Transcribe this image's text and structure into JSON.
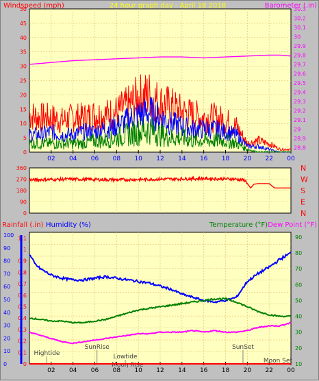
{
  "chart_data": [
    {
      "type": "line",
      "name": "wind-barometer",
      "title": "24 hour graph day - April 18 2018",
      "left_label": "Windspeed (mph)",
      "right_label": "Barometer (.in)",
      "x_ticks": [
        "02",
        "04",
        "06",
        "08",
        "10",
        "12",
        "14",
        "16",
        "18",
        "20",
        "22",
        "00"
      ],
      "y_left_ticks": [
        "0",
        "5",
        "10",
        "15",
        "20",
        "25",
        "30",
        "35",
        "40",
        "45",
        "50"
      ],
      "y_left_range": [
        0,
        50
      ],
      "y_right_ticks": [
        "28.8",
        "28.9",
        "29",
        "29.1",
        "29.2",
        "29.3",
        "29.4",
        "29.5",
        "29.6",
        "29.7",
        "29.8",
        "29.9",
        "30",
        "30.1",
        "30.2",
        "30.3"
      ],
      "y_right_range": [
        28.75,
        30.3
      ],
      "grid": true,
      "series": [
        {
          "id": "gust",
          "color": "#ff0000",
          "axis": "left",
          "x": [
            0,
            1,
            2,
            3,
            4,
            5,
            6,
            7,
            8,
            9,
            10,
            11,
            12,
            13,
            14,
            15,
            16,
            17,
            18,
            19,
            20,
            21,
            22,
            23,
            24
          ],
          "y": [
            13,
            12,
            12,
            11,
            12,
            12,
            13,
            13,
            14,
            16,
            19,
            20,
            17,
            16,
            14,
            13,
            12,
            12,
            11,
            9,
            3,
            4,
            3,
            1,
            1
          ]
        },
        {
          "id": "average",
          "color": "#0000ff",
          "axis": "left",
          "x": [
            0,
            1,
            2,
            3,
            4,
            5,
            6,
            7,
            8,
            9,
            10,
            11,
            12,
            13,
            14,
            15,
            16,
            17,
            18,
            19,
            20,
            21,
            22,
            23,
            24
          ],
          "y": [
            6,
            6,
            7,
            6,
            6,
            7,
            7,
            8,
            9,
            11,
            13,
            14,
            12,
            10,
            9,
            8,
            8,
            8,
            7,
            6,
            2,
            2,
            1,
            0,
            0
          ]
        },
        {
          "id": "wind",
          "color": "#008000",
          "axis": "left",
          "x": [
            0,
            1,
            2,
            3,
            4,
            5,
            6,
            7,
            8,
            9,
            10,
            11,
            12,
            13,
            14,
            15,
            16,
            17,
            18,
            19,
            20,
            21,
            22,
            23,
            24
          ],
          "y": [
            3,
            3,
            3,
            3,
            3,
            3,
            4,
            4,
            5,
            6,
            7,
            8,
            6,
            5,
            5,
            4,
            4,
            4,
            4,
            3,
            1,
            0,
            0,
            0,
            0
          ]
        },
        {
          "id": "barometer",
          "color": "#ff00ff",
          "axis": "right",
          "x": [
            0,
            2,
            4,
            6,
            8,
            10,
            12,
            14,
            16,
            18,
            20,
            22,
            23,
            24
          ],
          "y": [
            29.7,
            29.72,
            29.74,
            29.75,
            29.76,
            29.77,
            29.78,
            29.78,
            29.77,
            29.78,
            29.79,
            29.8,
            29.8,
            29.79
          ]
        }
      ]
    },
    {
      "type": "line",
      "name": "wind-direction",
      "y_ticks": [
        "0",
        "90",
        "180",
        "270",
        "360"
      ],
      "y_range": [
        0,
        360
      ],
      "compass_labels": [
        "N",
        "W",
        "S",
        "E",
        "N"
      ],
      "grid": true,
      "series": [
        {
          "id": "direction",
          "color": "#ff0000",
          "x": [
            0,
            4,
            8,
            12,
            16,
            19,
            19.8,
            20.3,
            20.6,
            21,
            22,
            22.5,
            23,
            24
          ],
          "y": [
            265,
            270,
            265,
            270,
            275,
            270,
            260,
            200,
            230,
            235,
            235,
            200,
            200,
            200
          ]
        }
      ]
    },
    {
      "type": "line",
      "name": "rain-humidity-temperature",
      "left_label": "Rainfall (.in)",
      "humidity_label": "Humidity (%)",
      "temperature_label": "Temperature (°F)",
      "dewpoint_label": "Dew Point (°F)",
      "y_rain_ticks": [
        "0",
        "0.1",
        "0.2",
        "0.3",
        "0.4",
        "0.5",
        "0.6",
        "0.7",
        "0.8",
        "0.9",
        "1",
        "1.1"
      ],
      "y_rain_range": [
        0,
        1.15
      ],
      "y_humidity_ticks": [
        "0",
        "10",
        "20",
        "30",
        "40",
        "50",
        "60",
        "70",
        "80",
        "90",
        "100"
      ],
      "y_temp_ticks": [
        "10",
        "20",
        "30",
        "40",
        "50",
        "60",
        "70",
        "80",
        "90"
      ],
      "y_temp_range": [
        10,
        93
      ],
      "grid": true,
      "events": [
        "Hightide",
        "SunRise",
        "Lowtide",
        "Moon Rise",
        "SunSet",
        "Moon Set"
      ],
      "series": [
        {
          "id": "humidity",
          "color": "#0000ff",
          "axis": "temp",
          "x": [
            0,
            0.5,
            1,
            2,
            3,
            4,
            5,
            6,
            7,
            8,
            9,
            10,
            11,
            12,
            13,
            14,
            15,
            16,
            17,
            18,
            19,
            20,
            21,
            22,
            23,
            24
          ],
          "y": [
            79,
            73,
            70,
            66,
            64,
            63,
            63,
            64,
            65,
            64,
            63,
            62,
            61,
            59,
            57,
            54,
            52,
            50,
            49,
            50,
            52,
            62,
            67,
            71,
            76,
            80
          ]
        },
        {
          "id": "temperature",
          "color": "#008000",
          "axis": "temp",
          "x": [
            0,
            1,
            2,
            3,
            4,
            5,
            6,
            7,
            8,
            9,
            10,
            11,
            12,
            13,
            14,
            15,
            16,
            17,
            18,
            19,
            20,
            21,
            22,
            23,
            24
          ],
          "y": [
            39,
            38,
            37,
            37,
            36,
            36,
            37,
            38,
            40,
            42,
            44,
            45,
            46,
            47,
            48,
            49,
            50,
            51,
            51,
            49,
            46,
            43,
            41,
            40,
            40
          ]
        },
        {
          "id": "dewpoint",
          "color": "#ff00ff",
          "axis": "temp",
          "x": [
            0,
            1,
            2,
            3,
            4,
            5,
            6,
            7,
            8,
            9,
            10,
            11,
            12,
            13,
            14,
            15,
            16,
            17,
            18,
            19,
            20,
            21,
            22,
            23,
            24
          ],
          "y": [
            30,
            28,
            26,
            24,
            23,
            24,
            25,
            26,
            27,
            28,
            29,
            29,
            30,
            30,
            30,
            31,
            30,
            31,
            30,
            30,
            31,
            33,
            34,
            34,
            36
          ]
        },
        {
          "id": "rainfall",
          "color": "#ff0000",
          "axis": "rain",
          "x": [
            0,
            24
          ],
          "y": [
            0,
            0
          ]
        }
      ]
    }
  ]
}
